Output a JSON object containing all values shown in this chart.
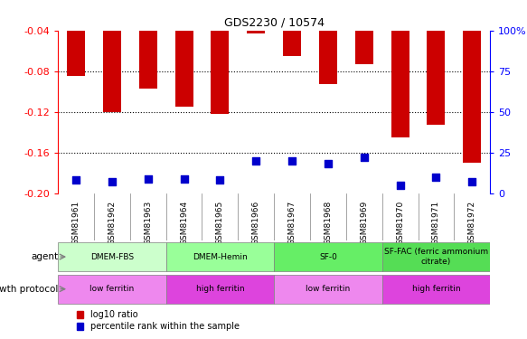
{
  "title": "GDS2230 / 10574",
  "samples": [
    "GSM81961",
    "GSM81962",
    "GSM81963",
    "GSM81964",
    "GSM81965",
    "GSM81966",
    "GSM81967",
    "GSM81968",
    "GSM81969",
    "GSM81970",
    "GSM81971",
    "GSM81972"
  ],
  "log10_ratio": [
    -0.085,
    -0.12,
    -0.097,
    -0.115,
    -0.122,
    -0.043,
    -0.065,
    -0.093,
    -0.073,
    -0.145,
    -0.133,
    -0.17
  ],
  "percentile_pct": [
    8,
    7,
    9,
    9,
    8,
    20,
    20,
    18,
    22,
    5,
    10,
    7
  ],
  "ylim_left": [
    -0.2,
    -0.04
  ],
  "ylim_right": [
    0,
    100
  ],
  "yticks_left": [
    -0.2,
    -0.16,
    -0.12,
    -0.08,
    -0.04
  ],
  "yticks_right": [
    0,
    25,
    50,
    75,
    100
  ],
  "bar_color": "#cc0000",
  "dot_color": "#0000cc",
  "agent_groups": [
    {
      "label": "DMEM-FBS",
      "start": 0,
      "end": 3,
      "color": "#ccffcc"
    },
    {
      "label": "DMEM-Hemin",
      "start": 3,
      "end": 6,
      "color": "#99ff99"
    },
    {
      "label": "SF-0",
      "start": 6,
      "end": 9,
      "color": "#66ee66"
    },
    {
      "label": "SF-FAC (ferric ammonium\ncitrate)",
      "start": 9,
      "end": 12,
      "color": "#55dd55"
    }
  ],
  "protocol_groups": [
    {
      "label": "low ferritin",
      "start": 0,
      "end": 3,
      "color": "#ee88ee"
    },
    {
      "label": "high ferritin",
      "start": 3,
      "end": 6,
      "color": "#dd44dd"
    },
    {
      "label": "low ferritin",
      "start": 6,
      "end": 9,
      "color": "#ee88ee"
    },
    {
      "label": "high ferritin",
      "start": 9,
      "end": 12,
      "color": "#dd44dd"
    }
  ],
  "legend_red_label": "log10 ratio",
  "legend_blue_label": "percentile rank within the sample",
  "left_axis_color": "red",
  "right_axis_color": "blue",
  "agent_label": "agent",
  "protocol_label": "growth protocol",
  "sample_row_color": "#dddddd",
  "bar_width": 0.5,
  "dot_size": 28
}
